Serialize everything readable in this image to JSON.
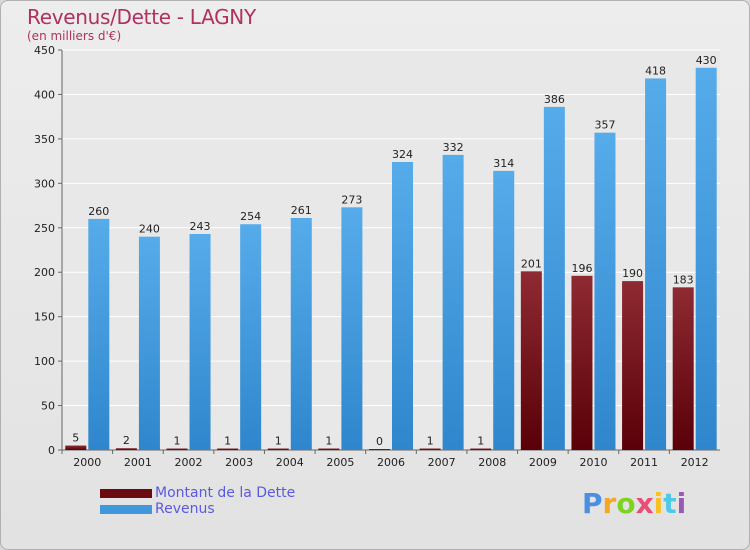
{
  "title": "Revenus/Dette - LAGNY",
  "subtitle": "(en milliers d'€)",
  "chart_data": {
    "type": "bar",
    "categories": [
      "2000",
      "2001",
      "2002",
      "2003",
      "2004",
      "2005",
      "2006",
      "2007",
      "2008",
      "2009",
      "2010",
      "2011",
      "2012"
    ],
    "series": [
      {
        "name": "Montant de la Dette",
        "color": "#7a1018",
        "values": [
          5,
          2,
          1,
          1,
          1,
          1,
          0,
          1,
          1,
          201,
          196,
          190,
          183
        ]
      },
      {
        "name": "Revenus",
        "color": "#3f98dc",
        "values": [
          260,
          240,
          243,
          254,
          261,
          273,
          324,
          332,
          314,
          386,
          357,
          418,
          430
        ]
      }
    ],
    "ylim": [
      0,
      450
    ],
    "yticks": [
      0,
      50,
      100,
      150,
      200,
      250,
      300,
      350,
      400,
      450
    ],
    "grid": true,
    "legend_position": "bottom-left"
  },
  "legend": [
    {
      "label": "Montant de la Dette",
      "color": "#6b0a10"
    },
    {
      "label": "Revenus",
      "color": "#3f98dc"
    }
  ],
  "logo": {
    "letters": [
      "P",
      "r",
      "o",
      "x",
      "i",
      "t",
      "i"
    ],
    "colors": [
      "#4a90e2",
      "#f5a623",
      "#7ed321",
      "#e94e77",
      "#f8c022",
      "#50c8e8",
      "#9b59b6"
    ]
  }
}
